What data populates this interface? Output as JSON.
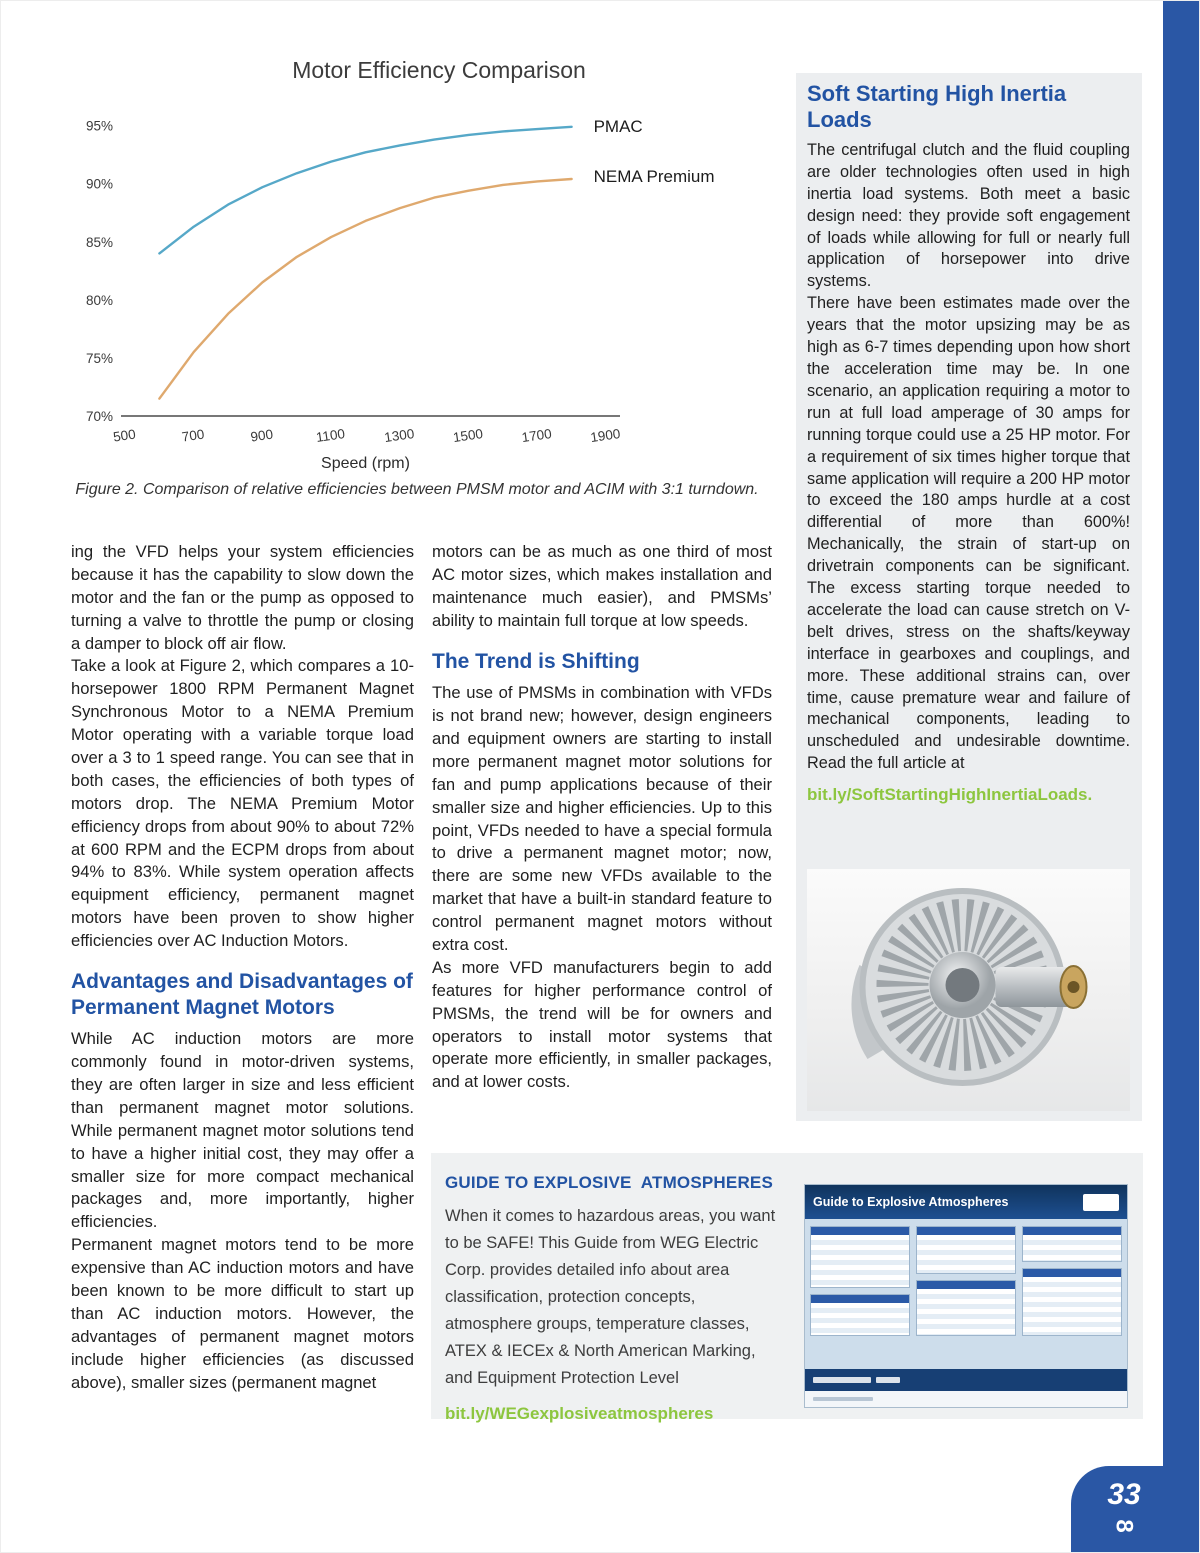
{
  "theme": {
    "heading_blue": "#2253a3",
    "link_green": "#8dc63f",
    "bar_blue": "#2a57a5",
    "sidebar_bg": "#eceef0",
    "guide_bg": "#eff1f2"
  },
  "chart_data": {
    "type": "line",
    "title": "Motor Efficiency Comparison",
    "xlabel": "Speed (rpm)",
    "ylabel": "",
    "xlim": [
      500,
      1900
    ],
    "ylim": [
      70,
      96
    ],
    "x_ticks": [
      500,
      700,
      900,
      1100,
      1300,
      1500,
      1700,
      1900
    ],
    "y_ticks": [
      "70%",
      "75%",
      "80%",
      "85%",
      "90%",
      "95%"
    ],
    "grid": false,
    "legend_position": "right-of-lines",
    "x": [
      600,
      700,
      800,
      900,
      1000,
      1100,
      1200,
      1300,
      1400,
      1500,
      1600,
      1700,
      1800
    ],
    "series": [
      {
        "name": "PMAC",
        "color": "#56a8c8",
        "label_dy": 5,
        "values": [
          84.0,
          86.3,
          88.2,
          89.7,
          90.9,
          91.9,
          92.7,
          93.3,
          93.8,
          94.2,
          94.5,
          94.7,
          94.9
        ]
      },
      {
        "name": "NEMA Premium",
        "color": "#dfa96e",
        "label_dy": 3,
        "values": [
          71.5,
          75.5,
          78.8,
          81.5,
          83.7,
          85.4,
          86.8,
          87.9,
          88.8,
          89.4,
          89.9,
          90.2,
          90.4
        ]
      }
    ]
  },
  "figure": {
    "caption": "Figure 2. Comparison of relative efficiencies between PMSM motor and ACIM with 3:1 turndown."
  },
  "article": {
    "col1_p1": "ing the VFD helps your system efficiencies because it has the capability to slow down the motor and the fan or the pump as opposed to turning a valve to throttle the pump or closing a damper to block off air flow.",
    "col1_p2": "Take a look at Figure 2, which compares a 10-horsepower 1800 RPM Permanent Magnet Synchronous Motor to a NEMA Premium Motor operating with a variable torque load over a 3 to 1 speed range. You can see that in both cases, the efficiencies of both types of motors drop. The NEMA Premium Motor efficiency drops from about 90% to about 72% at 600 RPM and the ECPM drops from about 94% to 83%. While system operation affects equipment efficiency, permanent magnet motors have been proven to show higher efficiencies over AC Induction Motors.",
    "col1_heading": "Advantages and Disadvantages of Permanent Magnet Motors",
    "col1_p3": "While AC induction motors are more commonly found in motor-driven systems, they are often larger in size and less efficient than permanent magnet motor solutions. While permanent magnet motor solutions tend to have a higher initial cost, they may offer a smaller size for more compact mechanical packages and, more importantly, higher efficiencies.",
    "col1_p4": "Permanent magnet motors tend to be more expensive than AC induction motors and have been known to be more difficult to start up than AC induction motors. However, the advantages of permanent magnet motors include higher efficiencies (as discussed above), smaller sizes (permanent magnet",
    "col2_p1": "motors can be as much as one third of most AC motor sizes, which makes installation and maintenance much easier), and PMSMs’ ability to maintain full torque at low speeds.",
    "col2_heading": "The Trend is Shifting",
    "col2_p2": "The use of PMSMs in combination with VFDs is not brand new; however, design engineers and equipment owners are starting to install more permanent magnet motor solutions for fan and pump applications because of their smaller size and higher efficiencies. Up to this point, VFDs needed to have a special formula to drive a permanent magnet motor; now, there are some new VFDs available to the market that have a built-in standard feature to control permanent magnet motors without extra cost.",
    "col2_p3": "As more VFD manufacturers begin to add features for higher performance control of PMSMs, the trend will be for owners and operators to install motor systems that operate more efficiently, in smaller packages, and at lower costs."
  },
  "sidebar": {
    "title": "Soft Starting High Inertia Loads",
    "p1": "The centrifugal clutch and the fluid coupling are older technologies often used in high inertia load systems. Both meet a basic design need: they provide soft engagement of loads while allowing for full or nearly full application of horsepower into drive systems.",
    "p2": "There have been estimates made over the years that the motor upsizing may be as high as 6-7 times depending upon how short the acceleration time may be. In one scenario, an application requiring a motor to run at full load amperage of 30 amps for running torque could use a 25 HP motor. For a requirement of six times higher torque that same application will require a 200 HP motor to exceed the 180 amps hurdle at a cost differential of more than 600%! Mechanically, the strain of start-up on drivetrain components can be significant. The excess starting torque needed to accelerate the load can cause stretch on V-belt drives, stress on the shafts/keyway interface in gearboxes and couplings, and more. These additional strains can, over time, cause premature wear and failure of mechanical components, leading to unscheduled and undesirable downtime. Read the full article at",
    "link": "bit.ly/SoftStartingHighInertiaLoads."
  },
  "guide": {
    "title": "GUIDE TO EXPLOSIVE  ATMOSPHERES",
    "body": "When it comes to hazardous areas, you want to be SAFE! This Guide from WEG Electric Corp. provides detailed info about area classification, protection concepts, atmosphere groups, temperature classes, ATEX & IECEx & North American Marking, and Equipment Protection Level",
    "link": "bit.ly/WEGexplosiveatmospheres",
    "thumb_title": "Guide to Explosive Atmospheres"
  },
  "page": {
    "page_number": "33",
    "spine_digit": "8"
  }
}
